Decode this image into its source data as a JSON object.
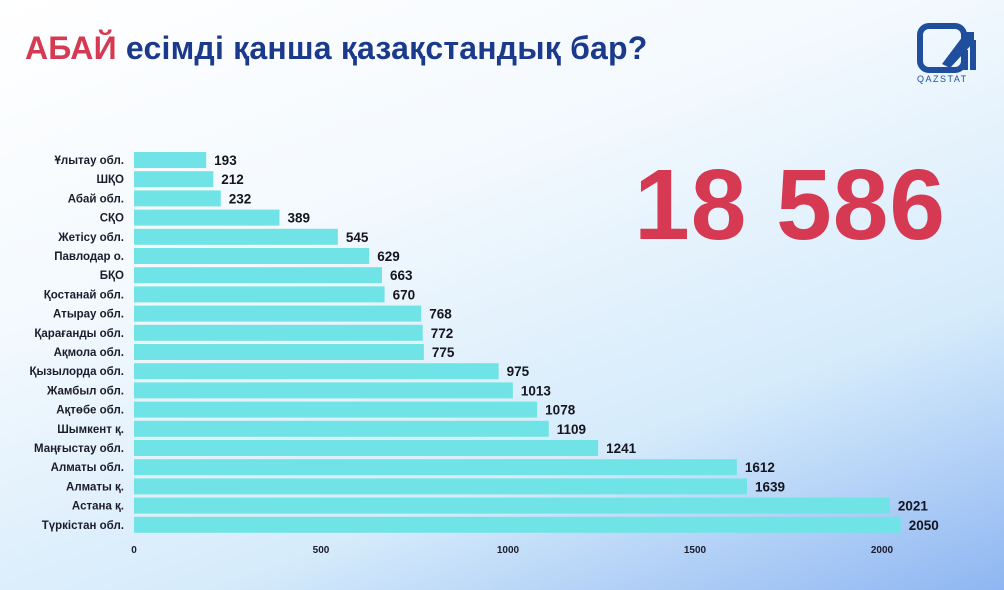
{
  "title": {
    "highlight": "АБАЙ",
    "rest": " есімді қанша қазақстандық бар?"
  },
  "total": "18 586",
  "logo": {
    "icon": "qazstat-logo-icon",
    "text": "QAZSTAT"
  },
  "colors": {
    "title": "#1b3a8c",
    "accent": "#d63a52",
    "bar": "#6fe3e6",
    "logo": "#1f4e9c"
  },
  "chart_data": {
    "type": "bar",
    "orientation": "horizontal",
    "categories": [
      "Ұлытау обл.",
      "ШҚО",
      "Абай обл.",
      "СҚО",
      "Жетісу обл.",
      "Павлодар о.",
      "БҚО",
      "Қостанай обл.",
      "Атырау обл.",
      "Қарағанды обл.",
      "Ақмола обл.",
      "Қызылорда обл.",
      "Жамбыл обл.",
      "Ақтөбе обл.",
      "Шымкент қ.",
      "Маңғыстау обл.",
      "Алматы обл.",
      "Алматы қ.",
      "Астана қ.",
      "Түркістан обл."
    ],
    "values": [
      193,
      212,
      232,
      389,
      545,
      629,
      663,
      670,
      768,
      772,
      775,
      975,
      1013,
      1078,
      1109,
      1241,
      1612,
      1639,
      2021,
      2050
    ],
    "xticks": [
      0,
      500,
      1000,
      1500,
      2000
    ],
    "xlim": [
      0,
      2050
    ],
    "grid": false,
    "legend": "none"
  }
}
